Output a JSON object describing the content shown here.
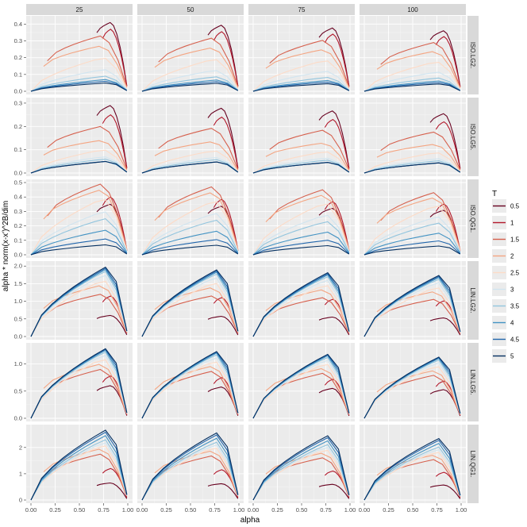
{
  "chart_data": {
    "type": "line",
    "xlabel": "alpha",
    "ylabel": "alpha * norm(x-x')^2B/dim",
    "legend": {
      "title": "T",
      "position": "right"
    },
    "col_facets": [
      "25",
      "50",
      "75",
      "100"
    ],
    "row_facets": [
      "ISO.LG2.",
      "ISO.LG5.",
      "ISO.QG1.",
      "LIN.LG2.",
      "LIN.LG5.",
      "LIN.QG1."
    ],
    "x_ticks": [
      "0.00",
      "0.25",
      "0.50",
      "0.75",
      "1.00"
    ],
    "xlim": [
      0,
      1
    ],
    "grid": true,
    "series": [
      {
        "name": "0.5",
        "color": "#67001f"
      },
      {
        "name": "1",
        "color": "#b2182b"
      },
      {
        "name": "1.5",
        "color": "#d6604d"
      },
      {
        "name": "2",
        "color": "#f4a582"
      },
      {
        "name": "2.5",
        "color": "#fddbc7"
      },
      {
        "name": "3",
        "color": "#d1e5f0"
      },
      {
        "name": "3.5",
        "color": "#92c5de"
      },
      {
        "name": "4",
        "color": "#4393c3"
      },
      {
        "name": "4.5",
        "color": "#2166ac"
      },
      {
        "name": "5",
        "color": "#053061"
      }
    ],
    "rows": [
      {
        "facet": "ISO.LG2.",
        "ylim": [
          0,
          0.43
        ],
        "y_ticks": [
          0,
          0.1,
          0.2,
          0.3,
          0.4
        ],
        "y_tick_labels": [
          "0.0",
          "0.1",
          "0.2",
          "0.3",
          "0.4"
        ],
        "peak": [
          0.41,
          0.37,
          0.33,
          0.27,
          0.2,
          0.13,
          0.09,
          0.07,
          0.06,
          0.05
        ]
      },
      {
        "facet": "ISO.LG5.",
        "ylim": [
          0,
          0.31
        ],
        "y_ticks": [
          0,
          0.1,
          0.2,
          0.3
        ],
        "y_tick_labels": [
          "0.0",
          "0.1",
          "0.2",
          "0.3"
        ],
        "peak": [
          0.29,
          0.25,
          0.2,
          0.14,
          0.1,
          0.07,
          0.06,
          0.05,
          0.05,
          0.05
        ]
      },
      {
        "facet": "ISO.QG1.",
        "ylim": [
          0,
          0.5
        ],
        "y_ticks": [
          0,
          0.1,
          0.2,
          0.3,
          0.4,
          0.5
        ],
        "y_tick_labels": [
          "0.0",
          "0.1",
          "0.2",
          "0.3",
          "0.4",
          "0.5"
        ],
        "peak": [
          0.35,
          0.4,
          0.49,
          0.45,
          0.39,
          0.3,
          0.25,
          0.17,
          0.11,
          0.07
        ]
      },
      {
        "facet": "LIN.LG2.",
        "ylim": [
          0,
          2.05
        ],
        "y_ticks": [
          0,
          0.5,
          1,
          1.5,
          2
        ],
        "y_tick_labels": [
          "0.0",
          "0.5",
          "1.0",
          "1.5",
          "2.0"
        ],
        "peak": [
          0.6,
          1.15,
          1.2,
          1.45,
          1.6,
          1.75,
          1.85,
          1.9,
          1.95,
          2.0
        ]
      },
      {
        "facet": "LIN.LG5.",
        "ylim": [
          0,
          1.33
        ],
        "y_ticks": [
          0,
          0.5,
          1
        ],
        "y_tick_labels": [
          "0.0",
          "0.5",
          "1.0"
        ],
        "peak": [
          0.6,
          0.78,
          0.9,
          1.0,
          1.1,
          1.17,
          1.22,
          1.25,
          1.28,
          1.3
        ]
      },
      {
        "facet": "LIN.QG1.",
        "ylim": [
          0,
          2.75
        ],
        "y_ticks": [
          0,
          1,
          2
        ],
        "y_tick_labels": [
          "0",
          "1",
          "2"
        ],
        "peak": [
          0.65,
          1.2,
          1.75,
          1.95,
          2.1,
          2.2,
          2.3,
          2.45,
          2.6,
          2.7
        ]
      }
    ]
  }
}
